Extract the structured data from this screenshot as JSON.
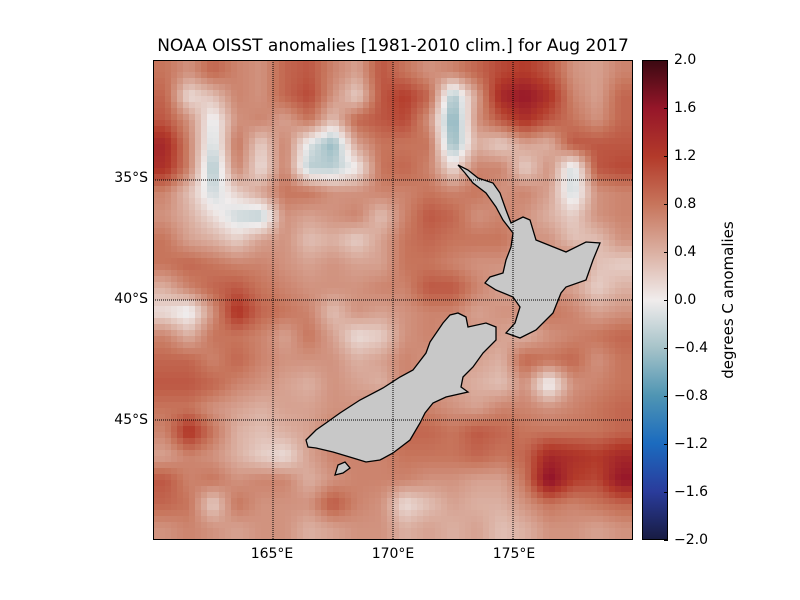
{
  "chart_data": {
    "type": "heatmap",
    "title": "NOAA OISST anomalies [1981-2010 clim.] for Aug 2017",
    "xlabel": "",
    "ylabel": "",
    "lon_range": [
      160,
      180
    ],
    "lat_range": [
      -30,
      -50
    ],
    "grid_resolution_deg": 1,
    "x_ticks": [
      {
        "value": 165,
        "label": "165°E"
      },
      {
        "value": 170,
        "label": "170°E"
      },
      {
        "value": 175,
        "label": "175°E"
      }
    ],
    "y_ticks": [
      {
        "value": -35,
        "label": "35°S"
      },
      {
        "value": -40,
        "label": "40°S"
      },
      {
        "value": -45,
        "label": "45°S"
      }
    ],
    "gridlines": true,
    "land_color": "#c8c8c8",
    "colorbar": {
      "label": "degrees C anomalies",
      "range": [
        -2.0,
        2.0
      ],
      "placement": "right",
      "ticks": [
        "2.0",
        "1.6",
        "1.2",
        "0.8",
        "0.4",
        "0.0",
        "−0.4",
        "−0.8",
        "−1.2",
        "−1.6",
        "−2.0"
      ],
      "colors": [
        "#181c43",
        "#2a3c9c",
        "#1b6bbf",
        "#4f95b3",
        "#a6c3c9",
        "#f0ecec",
        "#dbb0a2",
        "#c7755c",
        "#b33a2a",
        "#961629",
        "#3c0912"
      ]
    },
    "anomaly_grid_north_to_south": [
      [
        0.8,
        0.6,
        0.9,
        0.7,
        0.6,
        0.9,
        1.0,
        0.7,
        0.5,
        1.0,
        0.8,
        0.6,
        0.7,
        0.9,
        1.1,
        1.2,
        1.0,
        0.6,
        0.5,
        0.7
      ],
      [
        0.9,
        0.1,
        0.3,
        0.7,
        0.6,
        0.9,
        1.1,
        0.6,
        0.2,
        1.0,
        1.2,
        0.9,
        -0.4,
        0.5,
        1.4,
        1.6,
        1.3,
        0.7,
        0.5,
        0.9
      ],
      [
        1.0,
        0.6,
        -0.1,
        0.6,
        0.7,
        0.5,
        0.8,
        0.3,
        0.9,
        1.0,
        1.1,
        0.6,
        -0.6,
        0.6,
        1.0,
        1.3,
        1.0,
        0.8,
        0.6,
        0.9
      ],
      [
        1.4,
        0.7,
        -0.2,
        0.8,
        0.2,
        0.7,
        -0.1,
        -0.5,
        0.5,
        0.8,
        0.8,
        0.8,
        -0.5,
        0.4,
        0.2,
        0.5,
        0.4,
        1.0,
        1.0,
        1.0
      ],
      [
        1.3,
        0.7,
        -0.4,
        0.7,
        0.1,
        0.7,
        -0.3,
        -0.3,
        0.0,
        0.8,
        0.9,
        0.7,
        0.1,
        0.7,
        0.7,
        0.2,
        0.6,
        -0.2,
        1.0,
        1.1
      ],
      [
        0.7,
        0.3,
        -0.2,
        0.2,
        0.5,
        0.8,
        0.8,
        0.6,
        0.6,
        0.7,
        0.7,
        0.8,
        0.7,
        0.8,
        0.6,
        0.7,
        0.5,
        -0.2,
        0.6,
        0.7
      ],
      [
        0.6,
        0.4,
        0.1,
        -0.2,
        -0.3,
        0.6,
        0.5,
        0.6,
        0.7,
        0.3,
        0.7,
        1.0,
        0.9,
        0.6,
        0.7,
        0.6,
        0.4,
        0.2,
        0.6,
        0.7
      ],
      [
        0.8,
        0.5,
        0.4,
        0.2,
        0.5,
        0.6,
        0.3,
        0.4,
        0.2,
        0.5,
        0.8,
        0.9,
        0.8,
        0.8,
        0.8,
        0.6,
        0.6,
        0.3,
        0.3,
        0.6
      ],
      [
        0.8,
        0.9,
        0.8,
        0.7,
        0.7,
        0.6,
        0.5,
        0.6,
        0.5,
        0.5,
        0.8,
        0.8,
        0.7,
        0.6,
        0.6,
        0.5,
        0.6,
        0.8,
        0.3,
        0.2
      ],
      [
        0.4,
        0.7,
        0.9,
        1.0,
        0.8,
        0.7,
        0.6,
        0.6,
        0.6,
        0.7,
        0.7,
        1.0,
        1.0,
        0.7,
        0.5,
        0.5,
        0.6,
        0.5,
        0.2,
        0.4
      ],
      [
        0.1,
        -0.1,
        0.6,
        1.3,
        0.9,
        0.8,
        0.7,
        0.3,
        0.6,
        0.5,
        0.6,
        0.7,
        0.7,
        0.5,
        0.6,
        0.6,
        0.8,
        0.7,
        0.5,
        0.6
      ],
      [
        0.7,
        0.4,
        0.8,
        0.8,
        0.7,
        0.5,
        0.8,
        0.5,
        0.1,
        0.2,
        0.6,
        0.7,
        0.6,
        0.6,
        0.5,
        0.4,
        0.6,
        0.7,
        0.8,
        0.9
      ],
      [
        0.9,
        0.9,
        0.7,
        0.9,
        0.7,
        0.6,
        0.6,
        0.6,
        0.4,
        0.5,
        0.7,
        0.6,
        0.5,
        0.5,
        0.4,
        0.9,
        0.8,
        0.9,
        0.6,
        0.8
      ],
      [
        1.0,
        1.0,
        0.9,
        0.7,
        0.6,
        0.5,
        0.4,
        0.6,
        0.5,
        0.4,
        0.7,
        0.6,
        0.5,
        0.4,
        0.3,
        0.6,
        -0.1,
        0.6,
        0.7,
        0.8
      ],
      [
        0.8,
        0.8,
        0.6,
        0.5,
        0.4,
        0.5,
        0.5,
        0.6,
        0.6,
        0.8,
        0.8,
        0.7,
        0.6,
        0.5,
        0.7,
        0.7,
        0.6,
        0.7,
        0.8,
        0.9
      ],
      [
        0.7,
        1.3,
        0.8,
        0.4,
        0.3,
        0.4,
        0.5,
        0.7,
        0.7,
        0.8,
        0.9,
        0.9,
        0.8,
        1.0,
        0.9,
        0.8,
        0.8,
        0.8,
        0.8,
        0.9
      ],
      [
        0.5,
        0.7,
        0.6,
        0.4,
        0.2,
        0.1,
        0.5,
        0.7,
        0.7,
        0.7,
        0.8,
        0.8,
        0.8,
        0.9,
        0.8,
        0.9,
        1.4,
        1.3,
        1.2,
        1.4
      ],
      [
        1.0,
        0.7,
        0.8,
        0.6,
        0.7,
        0.7,
        0.4,
        0.6,
        0.7,
        0.7,
        0.7,
        0.6,
        0.6,
        0.5,
        0.5,
        0.8,
        1.7,
        1.2,
        1.1,
        1.6
      ],
      [
        0.9,
        0.8,
        0.2,
        0.8,
        0.6,
        0.6,
        0.6,
        1.0,
        0.7,
        0.6,
        0.1,
        0.3,
        0.5,
        0.4,
        0.4,
        0.6,
        0.8,
        0.7,
        0.8,
        0.9
      ],
      [
        0.6,
        0.7,
        0.6,
        0.5,
        0.6,
        0.6,
        0.4,
        0.5,
        0.6,
        0.6,
        0.4,
        0.5,
        0.4,
        0.5,
        0.3,
        0.4,
        0.6,
        0.6,
        0.5,
        0.6
      ]
    ]
  }
}
